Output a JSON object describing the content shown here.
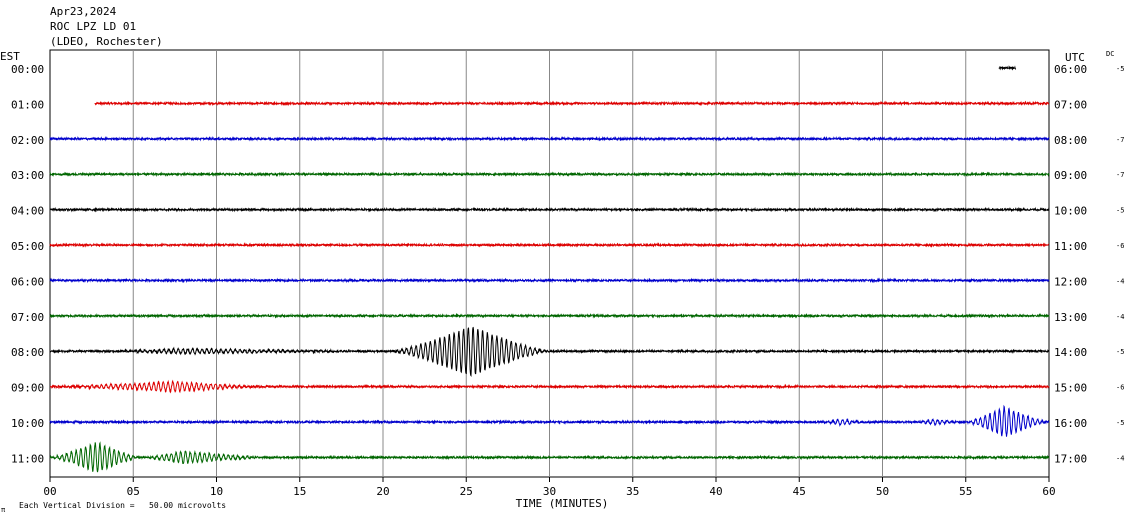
{
  "header": {
    "date": "Apr23,2024",
    "station": "ROC LPZ LD 01",
    "network": "(LDEO, Rochester)"
  },
  "left_axis_title": "EST",
  "right_axis_title": "UTC",
  "dc_label": "DC",
  "x_axis_title": "TIME (MINUTES)",
  "x_ticks": [
    "00",
    "05",
    "10",
    "15",
    "20",
    "25",
    "30",
    "35",
    "40",
    "45",
    "50",
    "55",
    "60"
  ],
  "footer": {
    "logo_text": "π",
    "scale_note": "Each Vertical Division =   50.00 microvolts"
  },
  "colors": {
    "red": "#dd0000",
    "blue": "#0000cc",
    "green": "#006600",
    "black": "#000000",
    "grid": "#888888"
  },
  "chart_data": {
    "type": "line",
    "title": "ROC LPZ LD 01",
    "xlabel": "TIME (MINUTES)",
    "ylabel": "",
    "xlim": [
      0,
      60
    ],
    "grid": true,
    "rows": [
      {
        "est": "00:00",
        "utc": "06:00",
        "dc": "-5",
        "color": "black",
        "start_min": 57,
        "end_min": 58,
        "events": []
      },
      {
        "est": "01:00",
        "utc": "07:00",
        "dc": "",
        "color": "red",
        "start_min": 2.7,
        "end_min": 60,
        "events": []
      },
      {
        "est": "02:00",
        "utc": "08:00",
        "dc": "-7",
        "color": "blue",
        "start_min": 0,
        "end_min": 60,
        "events": []
      },
      {
        "est": "03:00",
        "utc": "09:00",
        "dc": "-7",
        "color": "green",
        "start_min": 0,
        "end_min": 60,
        "events": []
      },
      {
        "est": "04:00",
        "utc": "10:00",
        "dc": "-5",
        "color": "black",
        "start_min": 0,
        "end_min": 60,
        "events": []
      },
      {
        "est": "05:00",
        "utc": "11:00",
        "dc": "-6",
        "color": "red",
        "start_min": 0,
        "end_min": 60,
        "events": []
      },
      {
        "est": "06:00",
        "utc": "12:00",
        "dc": "-4",
        "color": "blue",
        "start_min": 0,
        "end_min": 60,
        "events": []
      },
      {
        "est": "07:00",
        "utc": "13:00",
        "dc": "-4",
        "color": "green",
        "start_min": 0,
        "end_min": 60,
        "events": []
      },
      {
        "est": "08:00",
        "utc": "14:00",
        "dc": "-5",
        "color": "black",
        "start_min": 0,
        "end_min": 60,
        "events": [
          {
            "start": 20.5,
            "peak": 25.3,
            "end": 30,
            "amp": 25
          },
          {
            "start": 3,
            "peak": 8,
            "end": 20,
            "amp": 2.5
          }
        ]
      },
      {
        "est": "09:00",
        "utc": "15:00",
        "dc": "-6",
        "color": "red",
        "start_min": 0,
        "end_min": 60,
        "events": [
          {
            "start": 0,
            "peak": 7.5,
            "end": 13,
            "amp": 5
          }
        ]
      },
      {
        "est": "10:00",
        "utc": "16:00",
        "dc": "-5",
        "color": "blue",
        "start_min": 0,
        "end_min": 60,
        "events": [
          {
            "start": 46.5,
            "peak": 47.5,
            "end": 49,
            "amp": 3
          },
          {
            "start": 52,
            "peak": 53,
            "end": 55,
            "amp": 2.5
          },
          {
            "start": 55,
            "peak": 57.3,
            "end": 60,
            "amp": 15
          }
        ]
      },
      {
        "est": "11:00",
        "utc": "17:00",
        "dc": "-4",
        "color": "green",
        "start_min": 0,
        "end_min": 60,
        "events": [
          {
            "start": 0,
            "peak": 2.8,
            "end": 5.5,
            "amp": 15
          },
          {
            "start": 5.5,
            "peak": 8,
            "end": 13,
            "amp": 6
          }
        ]
      }
    ]
  }
}
